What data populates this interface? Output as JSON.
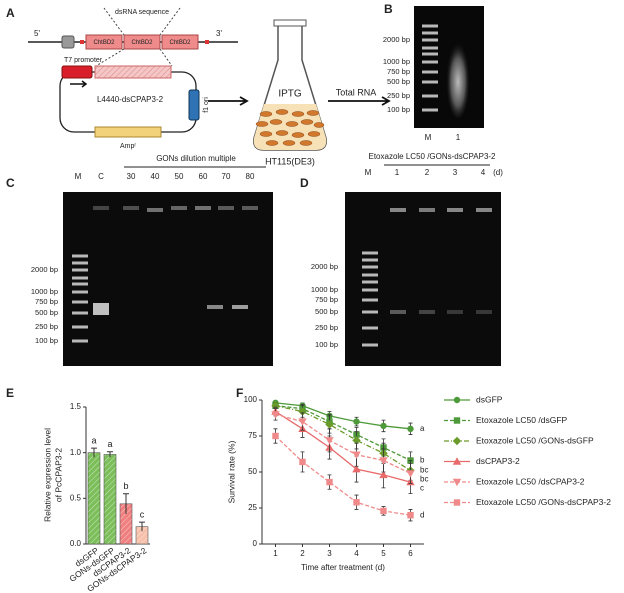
{
  "panels": {
    "a": {
      "label": "A",
      "five_prime": "5'",
      "three_prime": "3'",
      "dsrna": "dsRNA sequence",
      "domains": [
        "ChtBD2",
        "ChtBD2",
        "ChtBD2"
      ],
      "promoter": "T7 promoter",
      "plasmid": "L4440-dsCPAP3-2",
      "ori": "f1 ori",
      "amp": "Ampʳ",
      "inducer": "IPTG",
      "strain": "HT115(DE3)",
      "arrow_text": "Total RNA"
    },
    "b": {
      "label": "B",
      "ladder": [
        "2000 bp",
        "1000 bp",
        "750 bp",
        "500 bp",
        "250 bp",
        "100 bp"
      ],
      "lanes": [
        "M",
        "1"
      ]
    },
    "c": {
      "label": "C",
      "title": "GONs dilution multiple",
      "lanes": [
        "M",
        "C",
        "30",
        "40",
        "50",
        "60",
        "70",
        "80"
      ],
      "ladder": [
        "2000 bp",
        "1000 bp",
        "750 bp",
        "500 bp",
        "250 bp",
        "100 bp"
      ]
    },
    "d": {
      "label": "D",
      "title": "Etoxazole LC50 /GONs-dsCPAP3-2",
      "lanes": [
        "M",
        "1",
        "2",
        "3",
        "4"
      ],
      "unit": "(d)",
      "ladder": [
        "2000 bp",
        "1000 bp",
        "750 bp",
        "500 bp",
        "250 bp",
        "100 bp"
      ]
    },
    "e": {
      "label": "E"
    },
    "f": {
      "label": "F"
    }
  },
  "chart_data": [
    {
      "type": "bar",
      "ylabel": [
        "Relative expression level",
        "of PcCPAP3-2"
      ],
      "categories": [
        "dsGFP",
        "GONs-dsGFP",
        "dsCPAP3-2",
        "GONs-dsCPAP3-2"
      ],
      "values": [
        1.0,
        0.98,
        0.44,
        0.19
      ],
      "errors": [
        0.05,
        0.03,
        0.11,
        0.05
      ],
      "letters": [
        "a",
        "a",
        "b",
        "c"
      ],
      "colors": [
        "#7cbf5a",
        "#7cbf5a",
        "#f07f7f",
        "#f7c0aa"
      ],
      "ylim": [
        0,
        1.5
      ],
      "yticks": [
        {
          "value": 0,
          "label": "0.0"
        },
        {
          "value": 0.5,
          "label": "0.5"
        },
        {
          "value": 1,
          "label": "1.0"
        },
        {
          "value": 1.5,
          "label": "1.5"
        }
      ]
    },
    {
      "type": "line",
      "xlabel": "Time after treatment (d)",
      "ylabel": "Survival rate (%)",
      "x": [
        1,
        2,
        3,
        4,
        5,
        6
      ],
      "xlim": [
        0.5,
        6.5
      ],
      "xticks": [
        1,
        2,
        3,
        4,
        5,
        6
      ],
      "ylim": [
        0,
        100
      ],
      "yticks": [
        0,
        25,
        50,
        75,
        100
      ],
      "series": [
        {
          "name": "dsGFP",
          "color": "#4e9a3a",
          "dash": "solid",
          "marker": "circle",
          "letter": "a",
          "values": [
            98,
            96,
            89,
            85,
            82,
            80
          ],
          "errors": [
            1,
            2,
            3,
            3,
            4,
            4
          ]
        },
        {
          "name": "Etoxazole LC50 /dsGFP",
          "color": "#4e9a3a",
          "dash": "dashed",
          "marker": "square",
          "letter": "b",
          "values": [
            96,
            94,
            85,
            76,
            67,
            58
          ],
          "errors": [
            2,
            3,
            5,
            5,
            6,
            6
          ]
        },
        {
          "name": "Etoxazole LC50 /GONs-dsGFP",
          "color": "#6a9a2a",
          "dash": "dashdot",
          "marker": "diamond",
          "letter": "bc",
          "values": [
            96,
            92,
            83,
            72,
            63,
            51
          ],
          "errors": [
            2,
            4,
            6,
            6,
            7,
            7
          ]
        },
        {
          "name": "dsCPAP3-2",
          "color": "#e86a6a",
          "dash": "solid",
          "marker": "triangle",
          "letter": "c",
          "values": [
            92,
            80,
            67,
            52,
            48,
            43
          ],
          "errors": [
            3,
            6,
            8,
            9,
            9,
            8
          ]
        },
        {
          "name": "Etoxazole LC50 /dsCPAP3-2",
          "color": "#f08a8a",
          "dash": "dashed",
          "marker": "triangle-down",
          "letter": "bc",
          "values": [
            90,
            85,
            72,
            62,
            58,
            49
          ],
          "errors": [
            4,
            6,
            8,
            8,
            8,
            7
          ]
        },
        {
          "name": "Etoxazole LC50 /GONs-dsCPAP3-2",
          "color": "#f08a8a",
          "dash": "dashed",
          "marker": "square",
          "letter": "d",
          "values": [
            75,
            57,
            43,
            29,
            23,
            20
          ],
          "errors": [
            5,
            7,
            5,
            5,
            3,
            4
          ]
        }
      ]
    }
  ]
}
